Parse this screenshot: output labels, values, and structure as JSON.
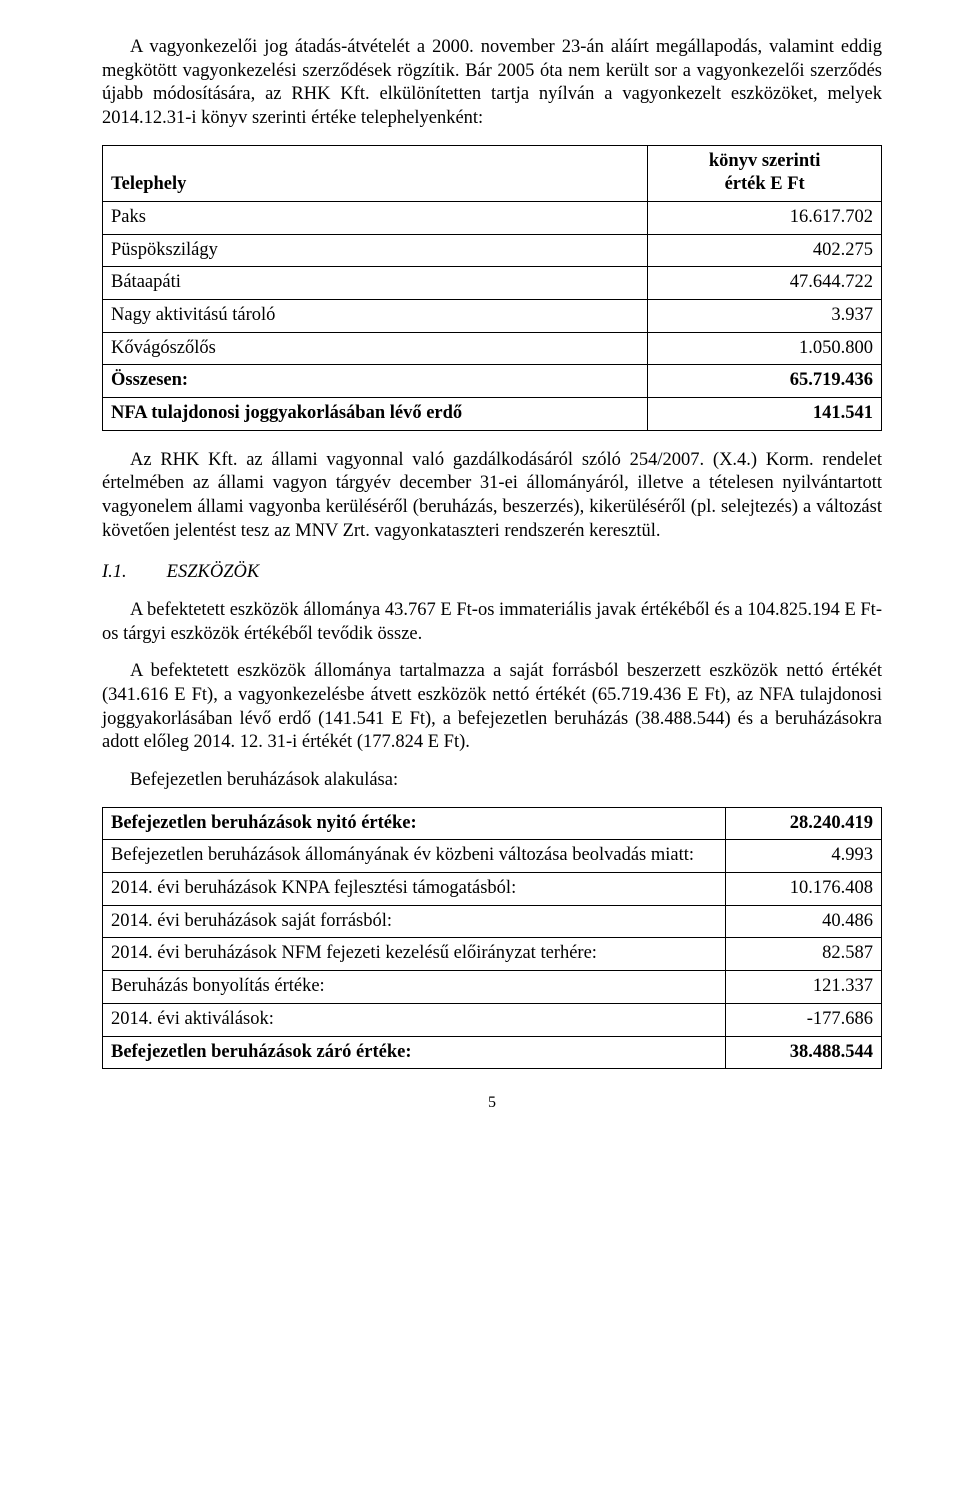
{
  "para1": "A vagyonkezelői jog átadás-átvételét a 2000. november 23-án aláírt megállapodás, valamint eddig megkötött vagyonkezelési szerződések rögzítik. Bár 2005 óta nem került sor a vagyonkezelői szerződés újabb módosítására, az RHK Kft. elkülönítetten tartja nyílván a vagyonkezelt eszközöket, melyek 2014.12.31-i könyv szerinti értéke telephelyenként:",
  "table1": {
    "header_left": "Telephely",
    "header_right_line1": "könyv szerinti",
    "header_right_line2": "érték E Ft",
    "rows": [
      {
        "label": "Paks",
        "value": "16.617.702"
      },
      {
        "label": "Püspökszilágy",
        "value": "402.275"
      },
      {
        "label": "Bátaapáti",
        "value": "47.644.722"
      },
      {
        "label": "Nagy aktivitású tároló",
        "value": "3.937"
      },
      {
        "label": "Kővágószőlős",
        "value": "1.050.800"
      },
      {
        "label": "Összesen:",
        "value": "65.719.436",
        "bold": true
      },
      {
        "label": "NFA tulajdonosi joggyakorlásában lévő erdő",
        "value": "141.541",
        "bold": true
      }
    ]
  },
  "para2": "Az RHK Kft. az állami vagyonnal való gazdálkodásáról szóló 254/2007. (X.4.) Korm. rendelet értelmében az állami vagyon tárgyév december 31-ei állományáról, illetve a tételesen nyilvántartott vagyonelem állami vagyonba kerüléséről (beruházás, beszerzés), kikerüléséről (pl. selejtezés) a változást követően jelentést tesz az MNV Zrt. vagyonkataszteri rendszerén keresztül.",
  "section": {
    "num": "I.1.",
    "title": "ESZKÖZÖK"
  },
  "para3": "A befektetett eszközök állománya 43.767 E Ft-os immateriális javak értékéből és a 104.825.194 E Ft-os tárgyi eszközök értékéből tevődik össze.",
  "para4": "A befektetett eszközök állománya tartalmazza a saját forrásból beszerzett eszközök nettó értékét (341.616 E Ft), a vagyonkezelésbe átvett eszközök nettó értékét (65.719.436 E Ft), az NFA tulajdonosi joggyakorlásában lévő erdő (141.541 E Ft), a befejezetlen beruházás (38.488.544) és a beruházásokra adott előleg 2014. 12. 31-i értékét (177.824 E Ft).",
  "para5": "Befejezetlen beruházások alakulása:",
  "table2": {
    "rows": [
      {
        "label": "Befejezetlen beruházások nyitó értéke:",
        "value": "28.240.419",
        "bold": true
      },
      {
        "label": "Befejezetlen beruházások állományának év közbeni változása beolvadás miatt:",
        "value": "4.993"
      },
      {
        "label": "2014. évi beruházások KNPA fejlesztési támogatásból:",
        "value": "10.176.408"
      },
      {
        "label": "2014. évi beruházások saját forrásból:",
        "value": "40.486"
      },
      {
        "label": "2014. évi beruházások NFM fejezeti kezelésű előirányzat terhére:",
        "value": "82.587"
      },
      {
        "label": "Beruházás bonyolítás értéke:",
        "value": "121.337"
      },
      {
        "label": "2014. évi aktiválások:",
        "value": "-177.686"
      },
      {
        "label": "Befejezetlen beruházások záró értéke:",
        "value": "38.488.544",
        "bold": true
      }
    ]
  },
  "pagenum": "5"
}
